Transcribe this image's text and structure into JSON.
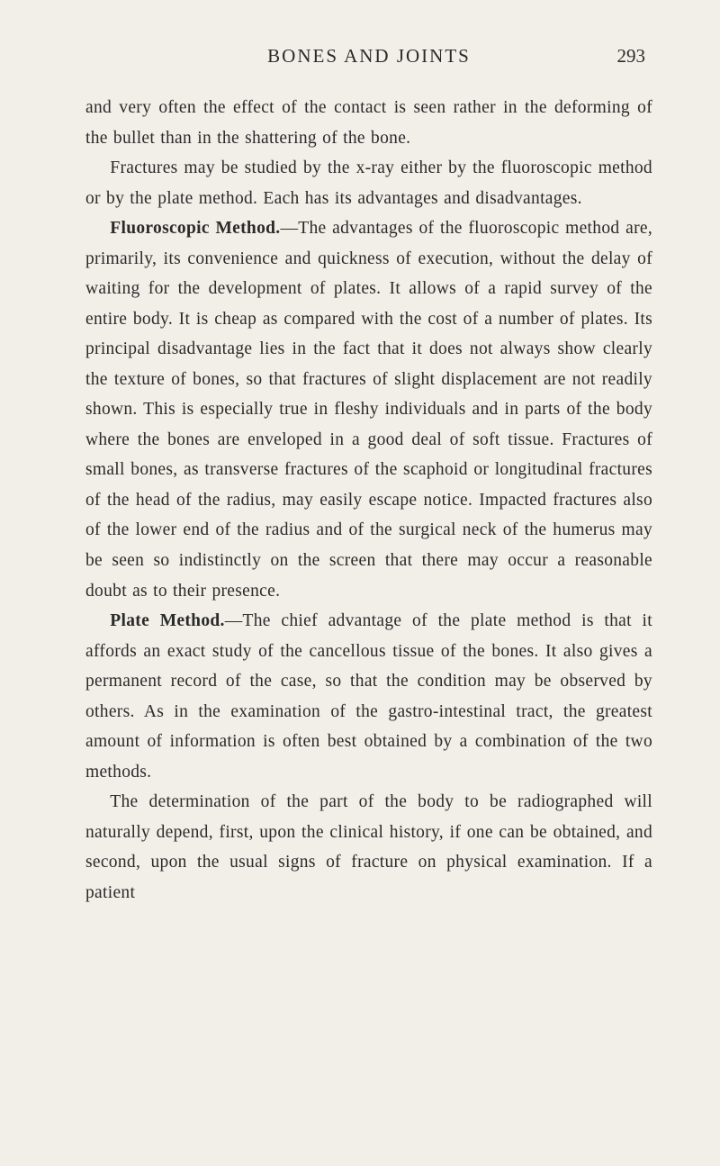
{
  "page": {
    "running_head": "BONES AND JOINTS",
    "number": "293",
    "background_color": "#f2efe8",
    "text_color": "#2a2a2a",
    "base_fontsize_pt": 14.5,
    "line_height": 1.72,
    "font_family": "Century Schoolbook, Georgia, serif"
  },
  "paragraphs": {
    "p1": "and very often the effect of the contact is seen rather in the deforming of the bullet than in the shattering of the bone.",
    "p2": "Fractures may be studied by the x-ray either by the fluoroscopic method or by the plate method. Each has its advantages and disadvantages.",
    "p3_head": "Fluoroscopic Method.",
    "p3_body": "—The advantages of the fluoro­scopic method are, primarily, its convenience and quick­ness of execution, without the delay of waiting for the development of plates. It allows of a rapid survey of the entire body. It is cheap as compared with the cost of a number of plates. Its principal disadvantage lies in the fact that it does not always show clearly the texture of bones, so that fractures of slight displacement are not readily shown. This is especially true in fleshy individuals and in parts of the body where the bones are enveloped in a good deal of soft tissue. Fractures of small bones, as transverse fractures of the scaphoid or longitudinal frac­tures of the head of the radius, may easily escape notice. Impacted fractures also of the lower end of the radius and of the surgical neck of the humerus may be seen so indistinctly on the screen that there may occur a reason­able doubt as to their presence.",
    "p4_head": "Plate Method.",
    "p4_body": "—The chief advantage of the plate method is that it affords an exact study of the cancellous tissue of the bones. It also gives a permanent record of the case, so that the condition may be observed by others. As in the examination of the gastro-intestinal tract, the greatest amount of information is often best obtained by a combination of the two methods.",
    "p5": "The determination of the part of the body to be radio­graphed will naturally depend, first, upon the clinical history, if one can be obtained, and second, upon the usual signs of fracture on physical examination. If a patient"
  }
}
